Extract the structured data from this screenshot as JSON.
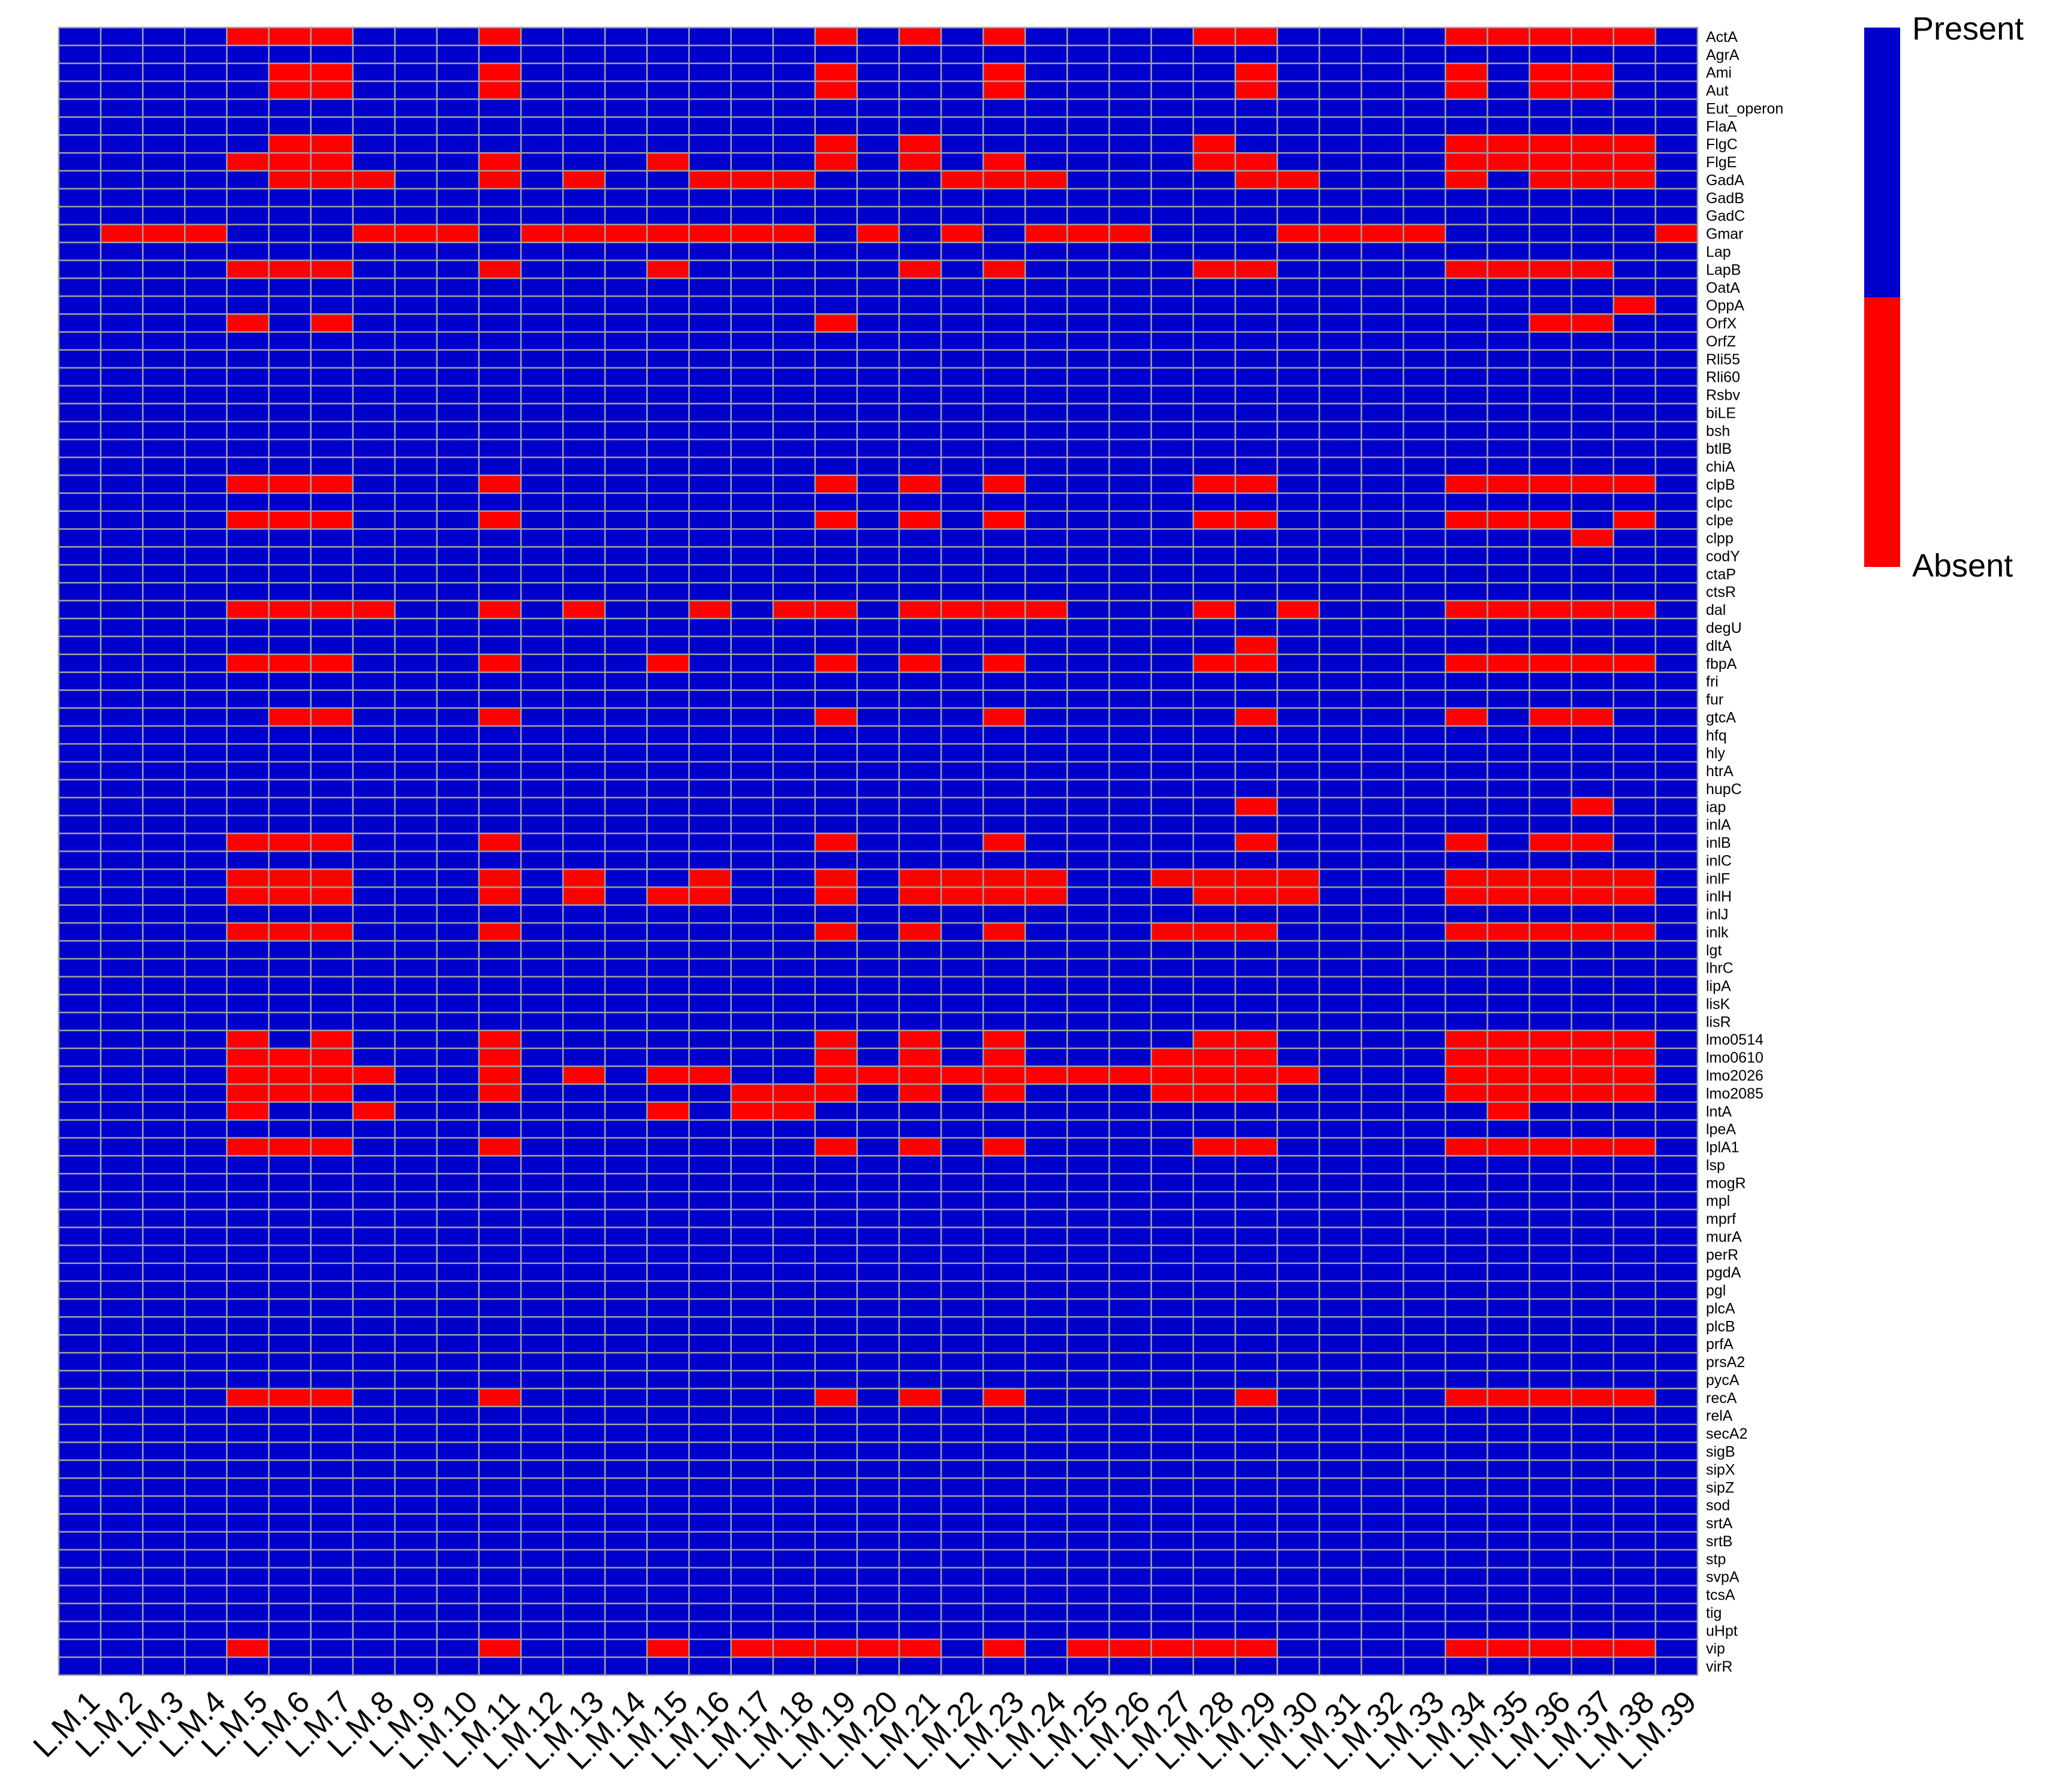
{
  "chart_data": {
    "type": "heatmap",
    "title": "",
    "xlabel": "",
    "ylabel": "",
    "colors": {
      "Present": "#0000CC",
      "Absent": "#FF0000",
      "grid": "#A0A0A0"
    },
    "legend": {
      "position": "top-right",
      "entries": [
        "Present",
        "Absent"
      ]
    },
    "columns": [
      "L.M.1",
      "L.M.2",
      "L.M.3",
      "L.M.4",
      "L.M.5",
      "L.M.6",
      "L.M.7",
      "L.M.8",
      "L.M.9",
      "L.M.10",
      "L.M.11",
      "L.M.12",
      "L.M.13",
      "L.M.14",
      "L.M.15",
      "L.M.16",
      "L.M.17",
      "L.M.18",
      "L.M.19",
      "L.M.20",
      "L.M.21",
      "L.M.22",
      "L.M.23",
      "L.M.24",
      "L.M.25",
      "L.M.26",
      "L.M.27",
      "L.M.28",
      "L.M.29",
      "L.M.30",
      "L.M.31",
      "L.M.32",
      "L.M.33",
      "L.M.34",
      "L.M.35",
      "L.M.36",
      "L.M.37",
      "L.M.38",
      "L.M.39"
    ],
    "rows": [
      "ActA",
      "AgrA",
      "Ami",
      "Aut",
      "Eut_operon",
      "FlaA",
      "FlgC",
      "FlgE",
      "GadA",
      "GadB",
      "GadC",
      "Gmar",
      "Lap",
      "LapB",
      "OatA",
      "OppA",
      "OrfX",
      "OrfZ",
      "Rli55",
      "Rli60",
      "Rsbv",
      "biLE",
      "bsh",
      "btlB",
      "chiA",
      "clpB",
      "clpc",
      "clpe",
      "clpp",
      "codY",
      "ctaP",
      "ctsR",
      "dal",
      "degU",
      "dltA",
      "fbpA",
      "fri",
      "fur",
      "gtcA",
      "hfq",
      "hly",
      "htrA",
      "hupC",
      "iap",
      "inlA",
      "inlB",
      "inlC",
      "inlF",
      "inlH",
      "inlJ",
      "inlk",
      "lgt",
      "lhrC",
      "lipA",
      "lisK",
      "lisR",
      "lmo0514",
      "lmo0610",
      "lmo2026",
      "lmo2085",
      "lntA",
      "lpeA",
      "lplA1",
      "lsp",
      "mogR",
      "mpl",
      "mprf",
      "murA",
      "perR",
      "pgdA",
      "pgl",
      "plcA",
      "plcB",
      "prfA",
      "prsA2",
      "pycA",
      "recA",
      "relA",
      "secA2",
      "sigB",
      "sipX",
      "sipZ",
      "sod",
      "srtA",
      "srtB",
      "stp",
      "svpA",
      "tcsA",
      "tig",
      "uHpt",
      "vip",
      "virR"
    ],
    "absent": {
      "ActA": [
        "L.M.5",
        "L.M.6",
        "L.M.7",
        "L.M.11",
        "L.M.19",
        "L.M.21",
        "L.M.23",
        "L.M.28",
        "L.M.29",
        "L.M.34",
        "L.M.35",
        "L.M.36",
        "L.M.37",
        "L.M.38"
      ],
      "Ami": [
        "L.M.6",
        "L.M.7",
        "L.M.11",
        "L.M.19",
        "L.M.23",
        "L.M.29",
        "L.M.34",
        "L.M.36",
        "L.M.37"
      ],
      "Aut": [
        "L.M.6",
        "L.M.7",
        "L.M.11",
        "L.M.19",
        "L.M.23",
        "L.M.29",
        "L.M.34",
        "L.M.36",
        "L.M.37"
      ],
      "FlgC": [
        "L.M.6",
        "L.M.7",
        "L.M.19",
        "L.M.21",
        "L.M.28",
        "L.M.34",
        "L.M.35",
        "L.M.36",
        "L.M.37",
        "L.M.38"
      ],
      "FlgE": [
        "L.M.5",
        "L.M.6",
        "L.M.7",
        "L.M.11",
        "L.M.15",
        "L.M.19",
        "L.M.21",
        "L.M.23",
        "L.M.28",
        "L.M.29",
        "L.M.34",
        "L.M.35",
        "L.M.36",
        "L.M.37",
        "L.M.38"
      ],
      "GadA": [
        "L.M.6",
        "L.M.7",
        "L.M.8",
        "L.M.11",
        "L.M.13",
        "L.M.16",
        "L.M.17",
        "L.M.18",
        "L.M.22",
        "L.M.23",
        "L.M.24",
        "L.M.29",
        "L.M.30",
        "L.M.34",
        "L.M.36",
        "L.M.37",
        "L.M.38"
      ],
      "Gmar": [
        "L.M.2",
        "L.M.3",
        "L.M.4",
        "L.M.8",
        "L.M.9",
        "L.M.10",
        "L.M.12",
        "L.M.13",
        "L.M.14",
        "L.M.15",
        "L.M.16",
        "L.M.17",
        "L.M.18",
        "L.M.20",
        "L.M.22",
        "L.M.24",
        "L.M.25",
        "L.M.26",
        "L.M.30",
        "L.M.31",
        "L.M.32",
        "L.M.33",
        "L.M.39"
      ],
      "LapB": [
        "L.M.5",
        "L.M.6",
        "L.M.7",
        "L.M.11",
        "L.M.15",
        "L.M.21",
        "L.M.23",
        "L.M.28",
        "L.M.29",
        "L.M.34",
        "L.M.35",
        "L.M.36",
        "L.M.37"
      ],
      "OppA": [
        "L.M.38"
      ],
      "OrfX": [
        "L.M.5",
        "L.M.7",
        "L.M.19",
        "L.M.36",
        "L.M.37"
      ],
      "clpB": [
        "L.M.5",
        "L.M.6",
        "L.M.7",
        "L.M.11",
        "L.M.19",
        "L.M.21",
        "L.M.23",
        "L.M.28",
        "L.M.29",
        "L.M.34",
        "L.M.35",
        "L.M.36",
        "L.M.37",
        "L.M.38"
      ],
      "clpe": [
        "L.M.5",
        "L.M.6",
        "L.M.7",
        "L.M.11",
        "L.M.19",
        "L.M.21",
        "L.M.23",
        "L.M.28",
        "L.M.29",
        "L.M.34",
        "L.M.35",
        "L.M.36",
        "L.M.38"
      ],
      "clpp": [
        "L.M.37"
      ],
      "dal": [
        "L.M.5",
        "L.M.6",
        "L.M.7",
        "L.M.8",
        "L.M.11",
        "L.M.13",
        "L.M.16",
        "L.M.18",
        "L.M.19",
        "L.M.21",
        "L.M.22",
        "L.M.23",
        "L.M.24",
        "L.M.28",
        "L.M.30",
        "L.M.34",
        "L.M.35",
        "L.M.36",
        "L.M.37",
        "L.M.38"
      ],
      "dltA": [
        "L.M.29"
      ],
      "fbpA": [
        "L.M.5",
        "L.M.6",
        "L.M.7",
        "L.M.11",
        "L.M.15",
        "L.M.19",
        "L.M.21",
        "L.M.23",
        "L.M.28",
        "L.M.29",
        "L.M.34",
        "L.M.35",
        "L.M.36",
        "L.M.37",
        "L.M.38"
      ],
      "gtcA": [
        "L.M.6",
        "L.M.7",
        "L.M.11",
        "L.M.19",
        "L.M.23",
        "L.M.29",
        "L.M.34",
        "L.M.36",
        "L.M.37"
      ],
      "iap": [
        "L.M.29",
        "L.M.37"
      ],
      "inlB": [
        "L.M.5",
        "L.M.6",
        "L.M.7",
        "L.M.11",
        "L.M.19",
        "L.M.23",
        "L.M.29",
        "L.M.34",
        "L.M.36",
        "L.M.37"
      ],
      "inlF": [
        "L.M.5",
        "L.M.6",
        "L.M.7",
        "L.M.11",
        "L.M.13",
        "L.M.16",
        "L.M.19",
        "L.M.21",
        "L.M.22",
        "L.M.23",
        "L.M.24",
        "L.M.27",
        "L.M.28",
        "L.M.29",
        "L.M.30",
        "L.M.34",
        "L.M.35",
        "L.M.36",
        "L.M.37",
        "L.M.38"
      ],
      "inlH": [
        "L.M.5",
        "L.M.6",
        "L.M.7",
        "L.M.11",
        "L.M.13",
        "L.M.15",
        "L.M.16",
        "L.M.19",
        "L.M.21",
        "L.M.22",
        "L.M.23",
        "L.M.24",
        "L.M.28",
        "L.M.29",
        "L.M.30",
        "L.M.34",
        "L.M.35",
        "L.M.36",
        "L.M.37",
        "L.M.38"
      ],
      "inlk": [
        "L.M.5",
        "L.M.6",
        "L.M.7",
        "L.M.11",
        "L.M.19",
        "L.M.21",
        "L.M.23",
        "L.M.27",
        "L.M.28",
        "L.M.29",
        "L.M.34",
        "L.M.35",
        "L.M.36",
        "L.M.37",
        "L.M.38"
      ],
      "lmo0514": [
        "L.M.5",
        "L.M.7",
        "L.M.11",
        "L.M.19",
        "L.M.21",
        "L.M.23",
        "L.M.28",
        "L.M.29",
        "L.M.34",
        "L.M.35",
        "L.M.36",
        "L.M.37",
        "L.M.38"
      ],
      "lmo0610": [
        "L.M.5",
        "L.M.6",
        "L.M.7",
        "L.M.11",
        "L.M.19",
        "L.M.21",
        "L.M.23",
        "L.M.27",
        "L.M.28",
        "L.M.29",
        "L.M.34",
        "L.M.35",
        "L.M.36",
        "L.M.37",
        "L.M.38"
      ],
      "lmo2026": [
        "L.M.5",
        "L.M.6",
        "L.M.7",
        "L.M.8",
        "L.M.11",
        "L.M.13",
        "L.M.15",
        "L.M.16",
        "L.M.19",
        "L.M.20",
        "L.M.21",
        "L.M.22",
        "L.M.23",
        "L.M.24",
        "L.M.25",
        "L.M.26",
        "L.M.27",
        "L.M.28",
        "L.M.29",
        "L.M.30",
        "L.M.34",
        "L.M.35",
        "L.M.36",
        "L.M.37",
        "L.M.38"
      ],
      "lmo2085": [
        "L.M.5",
        "L.M.6",
        "L.M.7",
        "L.M.11",
        "L.M.17",
        "L.M.18",
        "L.M.19",
        "L.M.21",
        "L.M.23",
        "L.M.27",
        "L.M.28",
        "L.M.29",
        "L.M.34",
        "L.M.35",
        "L.M.36",
        "L.M.37",
        "L.M.38"
      ],
      "lntA": [
        "L.M.5",
        "L.M.8",
        "L.M.15",
        "L.M.17",
        "L.M.18",
        "L.M.35"
      ],
      "lplA1": [
        "L.M.5",
        "L.M.6",
        "L.M.7",
        "L.M.11",
        "L.M.19",
        "L.M.21",
        "L.M.23",
        "L.M.28",
        "L.M.29",
        "L.M.34",
        "L.M.35",
        "L.M.36",
        "L.M.37",
        "L.M.38"
      ],
      "recA": [
        "L.M.5",
        "L.M.6",
        "L.M.7",
        "L.M.11",
        "L.M.19",
        "L.M.21",
        "L.M.23",
        "L.M.29",
        "L.M.34",
        "L.M.35",
        "L.M.36",
        "L.M.37",
        "L.M.38"
      ],
      "vip": [
        "L.M.5",
        "L.M.11",
        "L.M.15",
        "L.M.17",
        "L.M.18",
        "L.M.19",
        "L.M.20",
        "L.M.21",
        "L.M.23",
        "L.M.25",
        "L.M.26",
        "L.M.27",
        "L.M.28",
        "L.M.29",
        "L.M.34",
        "L.M.35",
        "L.M.36",
        "L.M.37",
        "L.M.38"
      ]
    }
  }
}
